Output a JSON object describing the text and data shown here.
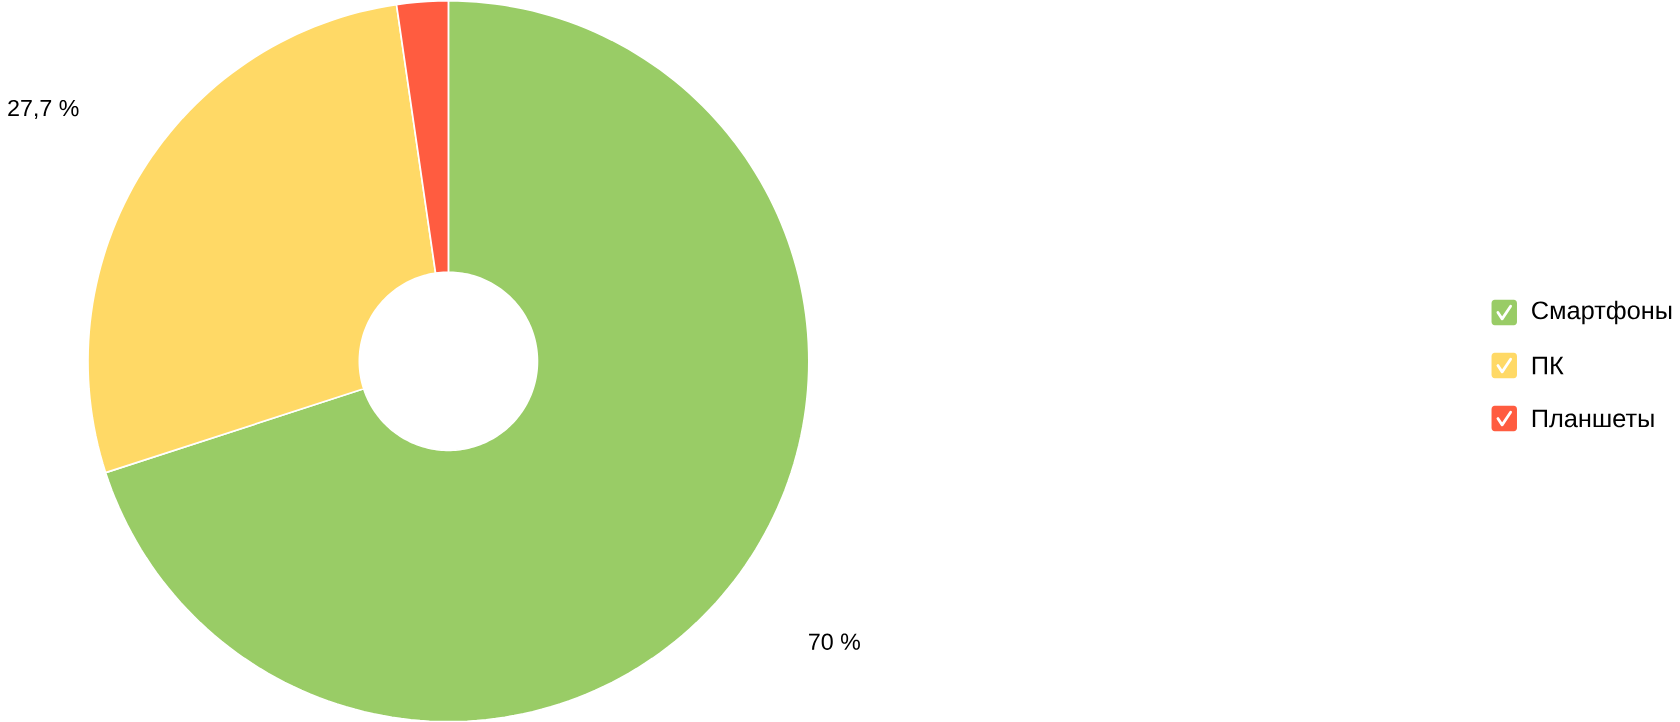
{
  "chart_data": {
    "type": "donut",
    "categories": [
      "Смартфоны",
      "ПК",
      "Планшеты"
    ],
    "values": [
      70,
      27.7,
      2.3
    ],
    "colors": [
      "#99cc66",
      "#ffd966",
      "#ff5c40"
    ],
    "value_labels": [
      "70 %",
      "27,7 %",
      null
    ],
    "legend": "right"
  }
}
